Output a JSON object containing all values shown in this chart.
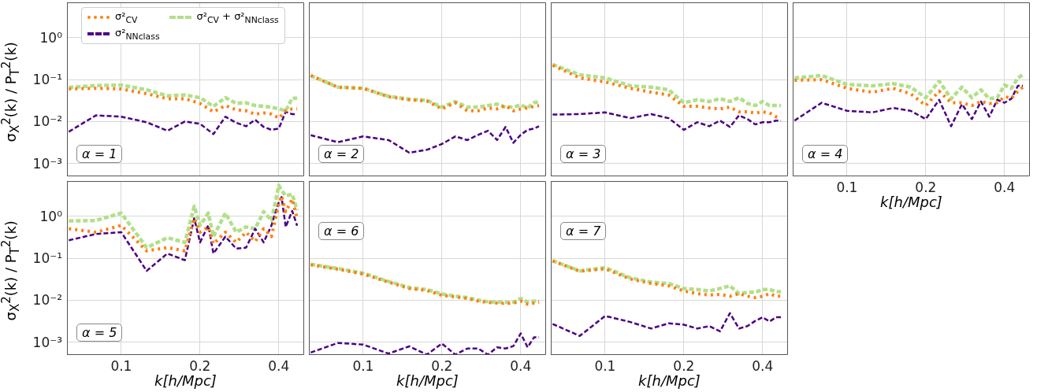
{
  "chart_data": [
    {
      "type": "line",
      "x": [
        0.063,
        0.08,
        0.1,
        0.125,
        0.15,
        0.175,
        0.2,
        0.225,
        0.25,
        0.275,
        0.3,
        0.325,
        0.35,
        0.375,
        0.4,
        0.425,
        0.45,
        0.47
      ],
      "log": "xy",
      "xlim": [
        0.062,
        0.5
      ],
      "ylim": [
        0.00049,
        7
      ],
      "xticks": [
        0.1,
        0.2,
        0.4
      ],
      "yticks": [
        {
          "value": 0.001,
          "label": "10⁻³"
        },
        {
          "value": 0.01,
          "label": "10⁻²"
        },
        {
          "value": 0.1,
          "label": "10⁻¹"
        },
        {
          "value": 1,
          "label": "10⁰"
        }
      ],
      "grid": true,
      "tick_labels": "y",
      "legend": "top",
      "ylabel": "σ$_{X}$$^{2}$(k) / P$_{T}$$^{2}$(k)",
      "annotations": [
        "α = 1"
      ],
      "series": [
        {
          "name": "σ²$_{CV}$",
          "color": "#ff7f0e",
          "line_style": "dotted",
          "values": [
            0.06,
            0.062,
            0.06,
            0.046,
            0.035,
            0.035,
            0.027,
            0.017,
            0.024,
            0.019,
            0.018,
            0.015,
            0.016,
            0.015,
            0.012,
            0.018,
            0.02,
            0.02
          ]
        },
        {
          "name": "σ²$_{NNclass}$",
          "color": "#4b0082",
          "line_style": "dashed",
          "values": [
            0.0057,
            0.014,
            0.013,
            0.0096,
            0.006,
            0.01,
            0.0088,
            0.005,
            0.013,
            0.0093,
            0.0077,
            0.011,
            0.0074,
            0.0063,
            0.0068,
            0.017,
            0.015,
            0.015
          ]
        },
        {
          "name": "σ²$_{CV}$ + σ²$_{NNclass}$",
          "color": "#b2df8a",
          "line_style": "dashed",
          "values": [
            0.065,
            0.072,
            0.074,
            0.057,
            0.041,
            0.043,
            0.037,
            0.023,
            0.037,
            0.027,
            0.028,
            0.024,
            0.023,
            0.022,
            0.02,
            0.018,
            0.036,
            0.036
          ]
        }
      ]
    },
    {
      "type": "line",
      "x": [
        0.063,
        0.08,
        0.1,
        0.125,
        0.15,
        0.175,
        0.2,
        0.225,
        0.25,
        0.275,
        0.3,
        0.325,
        0.35,
        0.375,
        0.4,
        0.425,
        0.45,
        0.47
      ],
      "log": "xy",
      "xlim": [
        0.062,
        0.5
      ],
      "ylim": [
        0.00049,
        7
      ],
      "xticks": [
        0.1,
        0.2,
        0.4
      ],
      "yticks": [
        0.001,
        0.01,
        0.1,
        1
      ],
      "grid": true,
      "tick_labels": false,
      "annotations": [
        "α = 2"
      ],
      "series": [
        {
          "color": "#ff7f0e",
          "line_style": "dotted",
          "values": [
            0.125,
            0.066,
            0.062,
            0.039,
            0.033,
            0.031,
            0.02,
            0.028,
            0.018,
            0.018,
            0.021,
            0.02,
            0.024,
            0.018,
            0.02,
            0.021,
            0.023,
            0.024
          ]
        },
        {
          "color": "#4b0082",
          "line_style": "dashed",
          "values": [
            0.0047,
            0.0032,
            0.0044,
            0.0036,
            0.0018,
            0.0021,
            0.0029,
            0.0044,
            0.0036,
            0.0048,
            0.006,
            0.0036,
            0.0074,
            0.0031,
            0.0048,
            0.0063,
            0.0068,
            0.0077
          ]
        },
        {
          "color": "#b2df8a",
          "line_style": "dashed",
          "values": [
            0.125,
            0.066,
            0.062,
            0.04,
            0.034,
            0.032,
            0.022,
            0.03,
            0.022,
            0.022,
            0.024,
            0.026,
            0.022,
            0.022,
            0.025,
            0.021,
            0.028,
            0.03
          ]
        }
      ]
    },
    {
      "type": "line",
      "x": [
        0.063,
        0.08,
        0.1,
        0.125,
        0.15,
        0.175,
        0.2,
        0.225,
        0.25,
        0.275,
        0.3,
        0.325,
        0.35,
        0.375,
        0.4,
        0.425,
        0.45,
        0.47
      ],
      "log": "xy",
      "xlim": [
        0.062,
        0.5
      ],
      "ylim": [
        0.00049,
        7
      ],
      "xticks": [
        0.1,
        0.2,
        0.4
      ],
      "yticks": [
        0.001,
        0.01,
        0.1,
        1
      ],
      "grid": true,
      "tick_labels": false,
      "annotations": [
        "α = 3"
      ],
      "series": [
        {
          "color": "#ff7f0e",
          "line_style": "dotted",
          "values": [
            0.22,
            0.11,
            0.088,
            0.062,
            0.05,
            0.043,
            0.023,
            0.023,
            0.021,
            0.02,
            0.022,
            0.017,
            0.017,
            0.016,
            0.017,
            0.016,
            0.013,
            0.012
          ]
        },
        {
          "color": "#4b0082",
          "line_style": "dashed",
          "values": [
            0.0146,
            0.015,
            0.0165,
            0.012,
            0.015,
            0.012,
            0.0063,
            0.0096,
            0.0077,
            0.0105,
            0.0074,
            0.014,
            0.0114,
            0.0085,
            0.0096,
            0.0096,
            0.0105,
            0.0105
          ]
        },
        {
          "color": "#b2df8a",
          "line_style": "dashed",
          "values": [
            0.23,
            0.13,
            0.11,
            0.071,
            0.066,
            0.057,
            0.028,
            0.033,
            0.03,
            0.035,
            0.03,
            0.037,
            0.027,
            0.024,
            0.03,
            0.024,
            0.024,
            0.024
          ]
        }
      ]
    },
    {
      "type": "line",
      "x": [
        0.063,
        0.08,
        0.1,
        0.125,
        0.15,
        0.175,
        0.2,
        0.225,
        0.25,
        0.275,
        0.3,
        0.325,
        0.35,
        0.375,
        0.4,
        0.425,
        0.45,
        0.47
      ],
      "log": "xy",
      "xlim": [
        0.062,
        0.5
      ],
      "ylim": [
        0.00049,
        7
      ],
      "xticks": [
        0.1,
        0.2,
        0.4
      ],
      "yticks": [
        0.001,
        0.01,
        0.1,
        1
      ],
      "grid": true,
      "tick_labels": "x",
      "xlabel": "k[h/Mpc]",
      "annotations": [
        "α = 4"
      ],
      "series": [
        {
          "color": "#ff7f0e",
          "line_style": "dotted",
          "values": [
            0.096,
            0.1,
            0.062,
            0.05,
            0.062,
            0.046,
            0.024,
            0.053,
            0.028,
            0.028,
            0.024,
            0.03,
            0.027,
            0.028,
            0.039,
            0.036,
            0.053,
            0.066
          ]
        },
        {
          "color": "#4b0082",
          "line_style": "dashed",
          "values": [
            0.0105,
            0.028,
            0.018,
            0.0165,
            0.021,
            0.018,
            0.0114,
            0.033,
            0.0077,
            0.026,
            0.0114,
            0.03,
            0.013,
            0.033,
            0.028,
            0.035,
            0.071,
            0.071
          ]
        },
        {
          "color": "#b2df8a",
          "line_style": "dashed",
          "values": [
            0.11,
            0.125,
            0.077,
            0.071,
            0.08,
            0.066,
            0.037,
            0.092,
            0.035,
            0.066,
            0.037,
            0.057,
            0.035,
            0.037,
            0.074,
            0.062,
            0.11,
            0.13
          ]
        }
      ]
    },
    {
      "type": "line",
      "x": [
        0.063,
        0.08,
        0.1,
        0.125,
        0.15,
        0.175,
        0.19,
        0.2,
        0.215,
        0.225,
        0.25,
        0.275,
        0.3,
        0.325,
        0.35,
        0.375,
        0.4,
        0.41,
        0.425,
        0.45,
        0.47
      ],
      "log": "xy",
      "xlim": [
        0.062,
        0.5
      ],
      "ylim": [
        0.00049,
        7
      ],
      "xticks": [
        0.1,
        0.2,
        0.4
      ],
      "yticks": [
        {
          "value": 0.001,
          "label": "10⁻³"
        },
        {
          "value": 0.01,
          "label": "10⁻²"
        },
        {
          "value": 0.1,
          "label": "10⁻¹"
        },
        {
          "value": 1,
          "label": "10⁰"
        }
      ],
      "grid": true,
      "xlabel": "k[h/Mpc]",
      "ylabel": "σ$_{X}$$^{2}$(k) / P$_{T}$$^{2}$(k)",
      "annotations": [
        "α = 5"
      ],
      "series": [
        {
          "color": "#ff7f0e",
          "line_style": "dotted",
          "values": [
            0.51,
            0.42,
            0.61,
            0.15,
            0.18,
            0.15,
            0.9,
            0.42,
            0.56,
            0.22,
            0.42,
            0.24,
            0.42,
            0.25,
            0.51,
            0.33,
            1.95,
            3.1,
            1.3,
            2.6,
            0.9
          ]
        },
        {
          "color": "#4b0082",
          "line_style": "dashed",
          "values": [
            0.27,
            0.38,
            0.42,
            0.05,
            0.13,
            0.09,
            0.9,
            0.24,
            0.61,
            0.13,
            0.33,
            0.17,
            0.18,
            0.51,
            0.24,
            0.61,
            2.2,
            2.9,
            0.56,
            1.35,
            0.6
          ]
        },
        {
          "color": "#b2df8a",
          "line_style": "dashed",
          "values": [
            0.78,
            0.8,
            1.2,
            0.18,
            0.31,
            0.24,
            1.75,
            0.61,
            1.2,
            0.33,
            1.2,
            0.42,
            0.56,
            0.51,
            1.3,
            0.8,
            5.5,
            4.2,
            3.1,
            3.4,
            1.4
          ]
        }
      ]
    },
    {
      "type": "line",
      "x": [
        0.063,
        0.08,
        0.1,
        0.125,
        0.15,
        0.175,
        0.2,
        0.225,
        0.25,
        0.275,
        0.3,
        0.325,
        0.35,
        0.375,
        0.4,
        0.425,
        0.45,
        0.47
      ],
      "log": "xy",
      "xlim": [
        0.062,
        0.5
      ],
      "ylim": [
        0.00049,
        7
      ],
      "xticks": [
        0.1,
        0.2,
        0.4
      ],
      "yticks": [
        0.001,
        0.01,
        0.1,
        1
      ],
      "grid": true,
      "tick_labels": "x",
      "xlabel": "k[h/Mpc]",
      "annotations": [
        "α = 6"
      ],
      "series": [
        {
          "color": "#ff7f0e",
          "line_style": "dotted",
          "values": [
            0.07,
            0.055,
            0.042,
            0.027,
            0.019,
            0.017,
            0.013,
            0.012,
            0.011,
            0.0095,
            0.0088,
            0.0085,
            0.0083,
            0.0085,
            0.0095,
            0.008,
            0.0085,
            0.009
          ]
        },
        {
          "color": "#4b0082",
          "line_style": "dashed",
          "values": [
            0.00056,
            0.00095,
            0.00087,
            0.00053,
            0.00079,
            0.0005,
            0.00092,
            0.0005,
            0.0007,
            0.0007,
            0.0005,
            0.00075,
            0.0007,
            0.0008,
            0.0016,
            0.00075,
            0.0013,
            0.0013
          ]
        },
        {
          "color": "#b2df8a",
          "line_style": "dashed",
          "values": [
            0.072,
            0.057,
            0.044,
            0.028,
            0.02,
            0.018,
            0.014,
            0.0125,
            0.0115,
            0.01,
            0.0092,
            0.009,
            0.0088,
            0.009,
            0.011,
            0.009,
            0.0095,
            0.0095
          ]
        }
      ]
    },
    {
      "type": "line",
      "x": [
        0.063,
        0.08,
        0.1,
        0.125,
        0.15,
        0.175,
        0.2,
        0.225,
        0.25,
        0.275,
        0.3,
        0.325,
        0.35,
        0.375,
        0.4,
        0.425,
        0.45,
        0.47
      ],
      "log": "xy",
      "xlim": [
        0.062,
        0.5
      ],
      "ylim": [
        0.00049,
        7
      ],
      "xticks": [
        0.1,
        0.2,
        0.4
      ],
      "yticks": [
        0.001,
        0.01,
        0.1,
        1
      ],
      "grid": true,
      "tick_labels": "x",
      "xlabel": "k[h/Mpc]",
      "annotations": [
        "α = 7"
      ],
      "series": [
        {
          "color": "#ff7f0e",
          "line_style": "dotted",
          "values": [
            0.087,
            0.049,
            0.056,
            0.032,
            0.025,
            0.022,
            0.0166,
            0.0143,
            0.0133,
            0.0137,
            0.0124,
            0.0143,
            0.0124,
            0.0115,
            0.0124,
            0.0143,
            0.0124,
            0.0124
          ]
        },
        {
          "color": "#4b0082",
          "line_style": "dashed",
          "values": [
            0.0027,
            0.0014,
            0.0042,
            0.003,
            0.0021,
            0.0028,
            0.0026,
            0.0021,
            0.0024,
            0.0018,
            0.0049,
            0.0021,
            0.0024,
            0.0032,
            0.0039,
            0.0031,
            0.0039,
            0.0039
          ]
        },
        {
          "color": "#b2df8a",
          "line_style": "dashed",
          "values": [
            0.087,
            0.05,
            0.06,
            0.034,
            0.027,
            0.025,
            0.019,
            0.018,
            0.0166,
            0.019,
            0.022,
            0.0143,
            0.0154,
            0.0154,
            0.018,
            0.018,
            0.016,
            0.016
          ]
        }
      ]
    }
  ]
}
